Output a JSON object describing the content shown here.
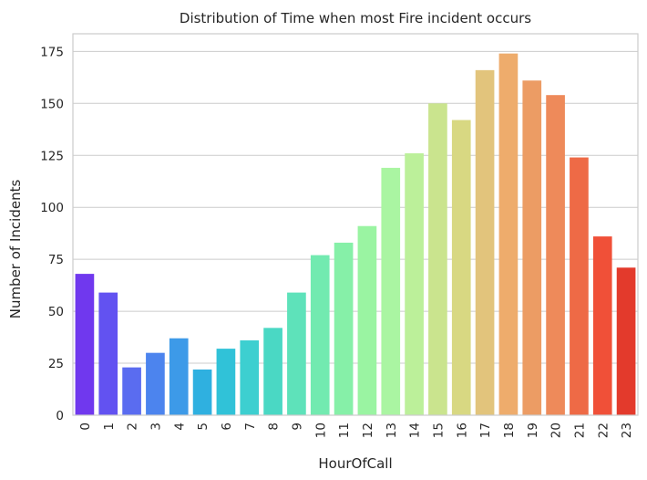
{
  "chart_data": {
    "type": "bar",
    "title": "Distribution of Time when most Fire incident occurs",
    "xlabel": "HourOfCall",
    "ylabel": "Number of Incidents",
    "categories": [
      "0",
      "1",
      "2",
      "3",
      "4",
      "5",
      "6",
      "7",
      "8",
      "9",
      "10",
      "11",
      "12",
      "13",
      "14",
      "15",
      "16",
      "17",
      "18",
      "19",
      "20",
      "21",
      "22",
      "23"
    ],
    "values": [
      68,
      59,
      23,
      30,
      37,
      22,
      32,
      36,
      42,
      59,
      77,
      83,
      91,
      119,
      126,
      150,
      142,
      166,
      174,
      161,
      154,
      124,
      86,
      71
    ],
    "colors": [
      "#7038ee",
      "#6252f1",
      "#5a6cf0",
      "#4c84ee",
      "#3d9ae8",
      "#2fb0e0",
      "#30c2d8",
      "#3dcfd0",
      "#4ad8c4",
      "#5ee2ba",
      "#72eab0",
      "#86f0a8",
      "#9af4a2",
      "#aaf5a2",
      "#bcf09a",
      "#cae48e",
      "#d8d882",
      "#e2c47c",
      "#eeac6c",
      "#ec9c64",
      "#ee8a5a",
      "#ee6a46",
      "#f05038",
      "#e33a2c"
    ],
    "y_ticks": [
      0,
      25,
      50,
      75,
      100,
      125,
      150,
      175
    ],
    "ylim": [
      0,
      183.5
    ],
    "grid": "horizontal"
  }
}
